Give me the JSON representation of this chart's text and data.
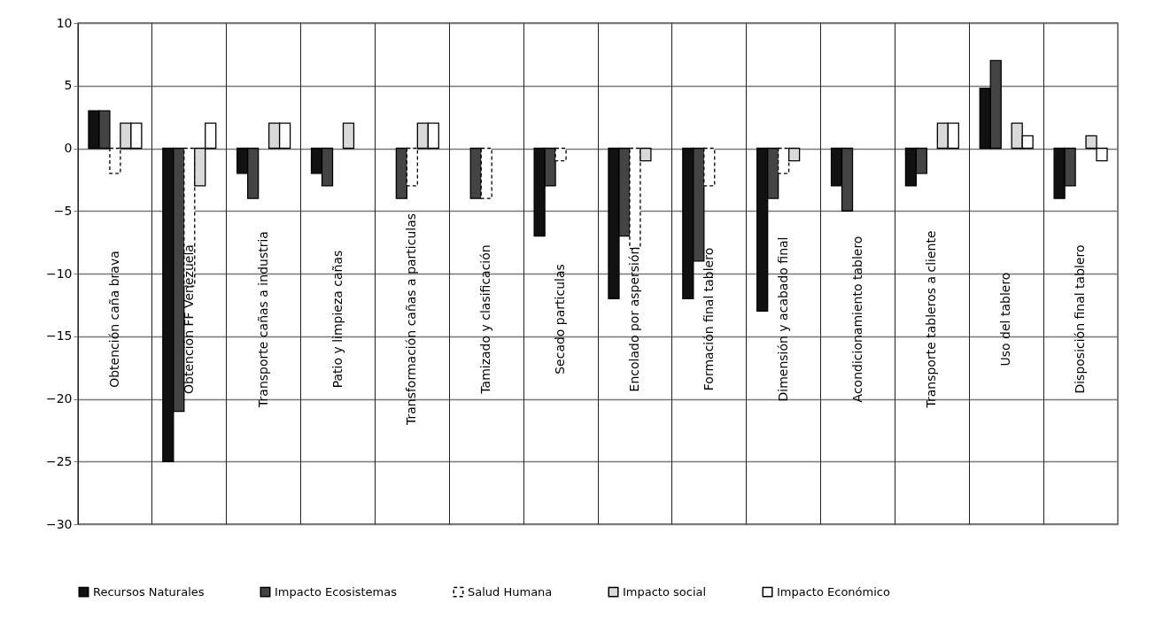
{
  "chart_data": {
    "type": "bar",
    "categories": [
      "Obtención caña brava",
      "Obtención FF Venezuela",
      "Transporte cañas a industria",
      "Patio y limpieza cañas",
      "Transformación cañas a particulas",
      "Tamizado y clasificación",
      "Secado particulas",
      "Encolado por aspersión",
      "Formación final tablero",
      "Dimensión y acabado final",
      "Acondicionamiento tablero",
      "Transporte tableros a cliente",
      "Uso del tablero",
      "Disposición final tablero"
    ],
    "series": [
      {
        "name": "Recursos Naturales",
        "color": "#111111",
        "values": [
          3,
          -25,
          -2,
          -2,
          null,
          null,
          -7,
          -12,
          -12,
          -13,
          -3,
          -3,
          4.8,
          -4
        ]
      },
      {
        "name": "Impacto Ecosistemas",
        "color": "#444444",
        "values": [
          3,
          -21,
          -4,
          -3,
          -4,
          -4,
          -3,
          -7,
          -9,
          -4,
          -5,
          -2,
          7,
          -3
        ]
      },
      {
        "name": "Salud Humana",
        "color": "#ffffff",
        "line_style": "dashed",
        "values": [
          -2,
          -11,
          null,
          null,
          -3,
          -4,
          -1,
          -8,
          -3,
          -2,
          null,
          null,
          null,
          null
        ]
      },
      {
        "name": "Impacto social",
        "color": "#d9d9d9",
        "values": [
          2,
          -3,
          2,
          2,
          2,
          null,
          null,
          -1,
          null,
          -1,
          null,
          2,
          2,
          1
        ]
      },
      {
        "name": "Impacto Económico",
        "color": "#ffffff",
        "values": [
          2,
          2,
          2,
          null,
          2,
          null,
          null,
          null,
          null,
          null,
          null,
          2,
          1,
          -1
        ]
      }
    ],
    "ylim": [
      -30,
      10
    ],
    "yticks": [
      -30,
      -25,
      -20,
      -15,
      -10,
      -5,
      0,
      5,
      10
    ],
    "grid": true,
    "legend": "bottom"
  }
}
